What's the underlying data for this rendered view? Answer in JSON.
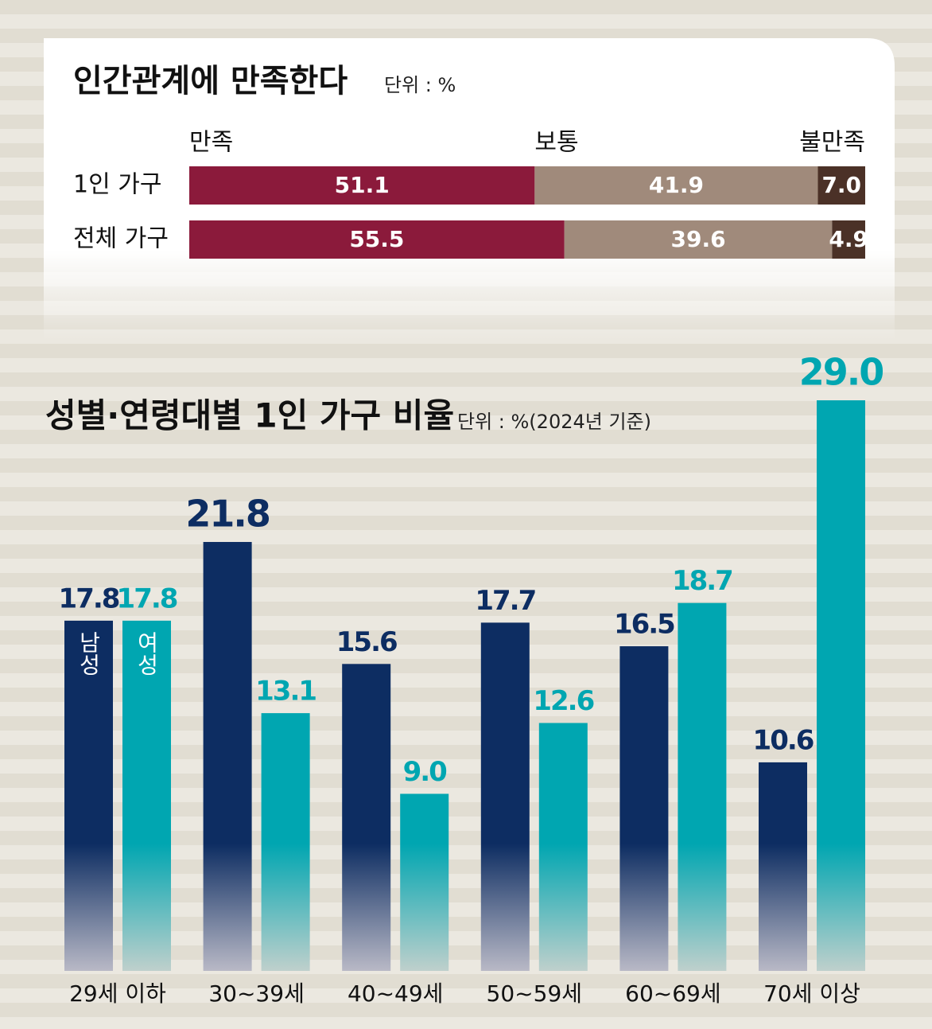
{
  "chart_data": [
    {
      "type": "stacked-bar-horizontal",
      "title": "인간관계에 만족한다",
      "subtitle": "단위 : %",
      "categories": [
        "1인 가구",
        "전체 가구"
      ],
      "series": [
        {
          "name": "만족",
          "color": "#8b1a3b",
          "values": [
            51.1,
            55.5
          ],
          "value_labels": [
            "51.1",
            "55.5"
          ]
        },
        {
          "name": "보통",
          "color": "#a08a7b",
          "values": [
            41.9,
            39.6
          ],
          "value_labels": [
            "41.9",
            "39.6"
          ]
        },
        {
          "name": "불만족",
          "color": "#4b3127",
          "values": [
            7.0,
            4.9
          ],
          "value_labels": [
            "7.0",
            "4.9"
          ]
        }
      ],
      "xlim": [
        0,
        100
      ]
    },
    {
      "type": "bar",
      "title": "성별·연령대별 1인 가구 비율",
      "subtitle": "단위 : %(2024년 기준)",
      "categories": [
        "29세 이하",
        "30~39세",
        "40~49세",
        "50~59세",
        "60~69세",
        "70세 이상"
      ],
      "series": [
        {
          "name": "남성",
          "color": "#0d2d62",
          "values": [
            17.8,
            21.8,
            15.6,
            17.7,
            16.5,
            10.6
          ],
          "value_labels": [
            "17.8",
            "21.8",
            "15.6",
            "17.7",
            "16.5",
            "10.6"
          ]
        },
        {
          "name": "여성",
          "color": "#00a6b1",
          "values": [
            17.8,
            13.1,
            9.0,
            12.6,
            18.7,
            29.0
          ],
          "value_labels": [
            "17.8",
            "13.1",
            "9.0",
            "12.6",
            "18.7",
            "29.0"
          ]
        }
      ],
      "ylim": [
        0,
        29
      ]
    }
  ]
}
